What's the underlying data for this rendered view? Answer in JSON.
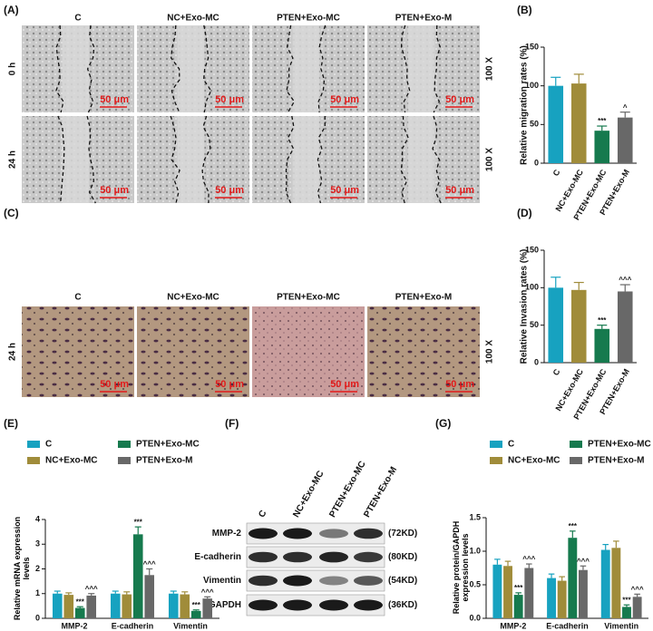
{
  "panels": {
    "A": {
      "label": "(A)",
      "columns": [
        "C",
        "NC+Exo-MC",
        "PTEN+Exo-MC",
        "PTEN+Exo-M"
      ],
      "rows": [
        "0 h",
        "24 h"
      ],
      "scale_bar": "50 μm",
      "magnification": "100 X"
    },
    "C": {
      "label": "(C)",
      "columns": [
        "C",
        "NC+Exo-MC",
        "PTEN+Exo-MC",
        "PTEN+Exo-M"
      ],
      "rows": [
        "24 h"
      ],
      "scale_bar": "50 μm",
      "magnification": "100 X"
    },
    "F": {
      "label": "(F)",
      "lanes": [
        "C",
        "NC+Exo-MC",
        "PTEN+Exo-MC",
        "PTEN+Exo-M"
      ],
      "proteins": [
        "MMP-2",
        "E-cadherin",
        "Vimentin",
        "GAPDH"
      ],
      "sizes": [
        "(72KD)",
        "(80KD)",
        "(54KD)",
        "(36KD)"
      ]
    }
  },
  "chart_data": [
    {
      "panel": "(B)",
      "type": "bar",
      "ylabel": "Relative migration rates (%)",
      "categories": [
        "C",
        "NC+Exo-MC",
        "PTEN+Exo-MC",
        "PTEN+Exo-M"
      ],
      "values": [
        100,
        103,
        42,
        59
      ],
      "errors": [
        11,
        12,
        6,
        7
      ],
      "annotations": [
        null,
        null,
        "***",
        "^"
      ],
      "colors": [
        "#17a2c0",
        "#a08c3a",
        "#167a4e",
        "#686868"
      ],
      "ylim": [
        0,
        150
      ],
      "yticks": [
        0,
        50,
        100,
        150
      ]
    },
    {
      "panel": "(D)",
      "type": "bar",
      "ylabel": "Relative Invasion rates (%)",
      "categories": [
        "C",
        "NC+Exo-MC",
        "PTEN+Exo-MC",
        "PTEN+Exo-M"
      ],
      "values": [
        100,
        97,
        45,
        95
      ],
      "errors": [
        14,
        10,
        5,
        9
      ],
      "annotations": [
        null,
        null,
        "***",
        "^^^"
      ],
      "colors": [
        "#17a2c0",
        "#a08c3a",
        "#167a4e",
        "#686868"
      ],
      "ylim": [
        0,
        150
      ],
      "yticks": [
        0,
        50,
        100,
        150
      ]
    },
    {
      "panel": "(E)",
      "type": "grouped_bar",
      "ylabel": "Relative mRNA expression levels",
      "categories": [
        "MMP-2",
        "E-cadherin",
        "Vimentin"
      ],
      "series": [
        {
          "name": "C",
          "color": "#17a2c0",
          "values": [
            1.0,
            1.0,
            1.0
          ],
          "errors": [
            0.1,
            0.1,
            0.1
          ],
          "annotations": [
            null,
            null,
            null
          ]
        },
        {
          "name": "NC+Exo-MC",
          "color": "#a08c3a",
          "values": [
            0.95,
            0.97,
            0.97
          ],
          "errors": [
            0.08,
            0.1,
            0.1
          ],
          "annotations": [
            null,
            null,
            null
          ]
        },
        {
          "name": "PTEN+Exo-MC",
          "color": "#167a4e",
          "values": [
            0.42,
            3.4,
            0.3
          ],
          "errors": [
            0.05,
            0.3,
            0.04
          ],
          "annotations": [
            "***",
            "***",
            "***"
          ]
        },
        {
          "name": "PTEN+Exo-M",
          "color": "#686868",
          "values": [
            0.92,
            1.75,
            0.8
          ],
          "errors": [
            0.08,
            0.25,
            0.07
          ],
          "annotations": [
            "^^^",
            "^^^",
            "^^^"
          ]
        }
      ],
      "ylim": [
        0,
        4
      ],
      "yticks": [
        0,
        1,
        2,
        3,
        4
      ]
    },
    {
      "panel": "(G)",
      "type": "grouped_bar",
      "ylabel": "Relative protein/GAPDH expression levels",
      "categories": [
        "MMP-2",
        "E-cadherin",
        "Vimentin"
      ],
      "series": [
        {
          "name": "C",
          "color": "#17a2c0",
          "values": [
            0.8,
            0.6,
            1.02
          ],
          "errors": [
            0.08,
            0.06,
            0.08
          ],
          "annotations": [
            null,
            null,
            null
          ]
        },
        {
          "name": "NC+Exo-MC",
          "color": "#a08c3a",
          "values": [
            0.78,
            0.56,
            1.05
          ],
          "errors": [
            0.07,
            0.06,
            0.1
          ],
          "annotations": [
            null,
            null,
            null
          ]
        },
        {
          "name": "PTEN+Exo-MC",
          "color": "#167a4e",
          "values": [
            0.35,
            1.2,
            0.17
          ],
          "errors": [
            0.03,
            0.1,
            0.03
          ],
          "annotations": [
            "***",
            "***",
            "***"
          ]
        },
        {
          "name": "PTEN+Exo-M",
          "color": "#686868",
          "values": [
            0.75,
            0.72,
            0.32
          ],
          "errors": [
            0.06,
            0.06,
            0.04
          ],
          "annotations": [
            "^^^",
            "^^^",
            "^^^"
          ]
        }
      ],
      "ylim": [
        0,
        1.5
      ],
      "yticks": [
        {
          "value": 0,
          "label": "0.0"
        },
        0.5,
        {
          "value": 1,
          "label": "1.0"
        },
        1.5
      ]
    }
  ]
}
